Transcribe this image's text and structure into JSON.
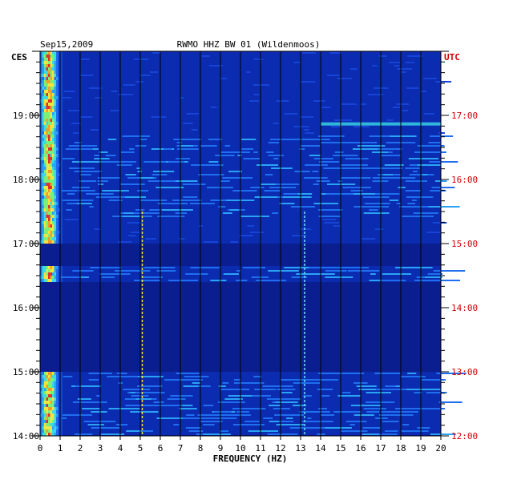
{
  "chart_data": {
    "type": "heatmap",
    "date": "Sep15,2009",
    "station": "RWMO HHZ BW 01 (Wildenmoos)",
    "xlabel": "FREQUENCY (HZ)",
    "left_tz": "CES",
    "right_tz": "UTC",
    "xlim": [
      0,
      20
    ],
    "x_ticks": [
      "0",
      "1",
      "2",
      "3",
      "4",
      "5",
      "6",
      "7",
      "8",
      "9",
      "10",
      "11",
      "12",
      "13",
      "14",
      "15",
      "16",
      "17",
      "18",
      "19",
      "20"
    ],
    "left_time_ticks": [
      "19:00",
      "18:00",
      "17:00",
      "16:00",
      "15:00",
      "14:00"
    ],
    "right_time_ticks": [
      "17:00",
      "16:00",
      "15:00",
      "14:00",
      "13:00",
      "12:00"
    ],
    "time_range_local": [
      "14:00",
      "19:55"
    ],
    "colors": {
      "background": "#0b2bb0",
      "grid": "#000000",
      "right_axis": "#d40000",
      "quiet_band": "#0a1e8f"
    },
    "features": [
      {
        "name": "low-frequency energy",
        "freq_hz": [
          0,
          1
        ],
        "intensity": "high"
      },
      {
        "name": "narrow line",
        "freq_hz": 5.1,
        "intensity": "high"
      },
      {
        "name": "narrow line",
        "freq_hz": 13.2,
        "intensity": "medium"
      },
      {
        "name": "upper band burst",
        "freq_hz": [
          14,
          20
        ],
        "time_local": "18:52",
        "intensity": "medium"
      }
    ],
    "quiet_intervals_local": [
      [
        "16:40",
        "17:00"
      ],
      [
        "15:00",
        "16:25"
      ]
    ]
  }
}
